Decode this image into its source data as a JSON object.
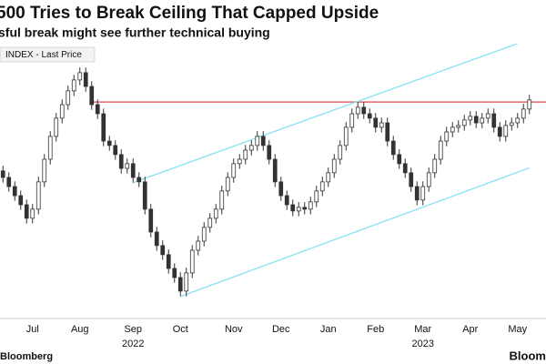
{
  "chart_data": {
    "type": "candlestick",
    "title": "500 Tries to Break Ceiling That Capped Upside",
    "subtitle": "sful break might see further technical buying",
    "series_name": "INDEX - Last Price",
    "source": "Bloomberg",
    "logo": "Bloom",
    "categories": [
      null,
      null,
      null,
      null,
      null,
      "Jul",
      null,
      null,
      null,
      null,
      null,
      null,
      null,
      "Aug",
      null,
      null,
      null,
      null,
      null,
      null,
      null,
      null,
      "Sep",
      null,
      null,
      null,
      null,
      null,
      null,
      null,
      "Oct",
      null,
      null,
      null,
      null,
      null,
      null,
      null,
      null,
      "Nov",
      null,
      null,
      null,
      null,
      null,
      null,
      null,
      "Dec",
      null,
      null,
      null,
      null,
      null,
      null,
      null,
      "Jan",
      null,
      null,
      null,
      null,
      null,
      null,
      null,
      "Feb",
      null,
      null,
      null,
      null,
      null,
      null,
      null,
      "Mar",
      null,
      null,
      null,
      null,
      null,
      null,
      null,
      "Apr",
      null,
      null,
      null,
      null,
      null,
      null,
      null,
      "May",
      null,
      null
    ],
    "category_years": [
      null,
      null,
      null,
      null,
      null,
      null,
      null,
      null,
      null,
      null,
      null,
      null,
      null,
      null,
      null,
      null,
      null,
      null,
      null,
      null,
      null,
      null,
      "2022",
      null,
      null,
      null,
      null,
      null,
      null,
      null,
      null,
      null,
      null,
      null,
      null,
      null,
      null,
      null,
      null,
      null,
      null,
      null,
      null,
      null,
      null,
      null,
      null,
      null,
      null,
      null,
      null,
      null,
      null,
      null,
      null,
      null,
      null,
      null,
      null,
      null,
      null,
      null,
      null,
      null,
      null,
      null,
      null,
      null,
      null,
      null,
      null,
      "2023",
      null,
      null,
      null,
      null,
      null,
      null,
      null,
      null,
      null,
      null,
      null,
      null,
      null,
      null,
      null,
      null,
      null,
      null
    ],
    "open": [
      3950,
      3925,
      3890,
      3855,
      3820,
      3768,
      3803,
      3908,
      3995,
      4083,
      4153,
      4205,
      4258,
      4300,
      4328,
      4275,
      4205,
      4170,
      4065,
      4048,
      4013,
      3960,
      3978,
      3925,
      3908,
      3803,
      3715,
      3663,
      3628,
      3575,
      3540,
      3488,
      3558,
      3645,
      3680,
      3733,
      3768,
      3803,
      3873,
      3925,
      3978,
      3995,
      4030,
      4048,
      4083,
      4048,
      3995,
      3908,
      3855,
      3820,
      3796,
      3810,
      3803,
      3831,
      3873,
      3908,
      3943,
      3995,
      4048,
      4118,
      4170,
      4195,
      4170,
      4153,
      4118,
      4135,
      4065,
      4013,
      3978,
      3943,
      3890,
      3838,
      3890,
      3943,
      3995,
      4065,
      4100,
      4118,
      4125,
      4146,
      4160,
      4135,
      4153,
      4170,
      4118,
      4083,
      4125,
      4135,
      4153,
      4188
    ],
    "high": [
      3970,
      3945,
      3910,
      3875,
      3840,
      3823,
      3928,
      4015,
      4103,
      4173,
      4225,
      4278,
      4320,
      4348,
      4348,
      4295,
      4225,
      4190,
      4085,
      4068,
      4033,
      3998,
      3998,
      3945,
      3928,
      3823,
      3735,
      3683,
      3648,
      3595,
      3560,
      3578,
      3665,
      3700,
      3753,
      3788,
      3823,
      3893,
      3945,
      3998,
      4015,
      4050,
      4068,
      4103,
      4103,
      4068,
      4015,
      3928,
      3875,
      3840,
      3830,
      3830,
      3851,
      3893,
      3928,
      3963,
      4015,
      4068,
      4138,
      4190,
      4215,
      4215,
      4190,
      4173,
      4155,
      4155,
      4085,
      4033,
      3998,
      3963,
      3910,
      3910,
      3963,
      4015,
      4085,
      4120,
      4138,
      4145,
      4166,
      4180,
      4180,
      4173,
      4190,
      4190,
      4138,
      4145,
      4155,
      4173,
      4208,
      4243
    ],
    "low": [
      3905,
      3870,
      3835,
      3800,
      3748,
      3748,
      3783,
      3888,
      3975,
      4063,
      4133,
      4185,
      4238,
      4280,
      4255,
      4185,
      4150,
      4045,
      4028,
      3993,
      3940,
      3940,
      3905,
      3888,
      3783,
      3695,
      3643,
      3608,
      3555,
      3520,
      3468,
      3468,
      3538,
      3625,
      3660,
      3713,
      3748,
      3783,
      3853,
      3905,
      3958,
      3975,
      4010,
      4028,
      4028,
      3975,
      3888,
      3835,
      3800,
      3776,
      3776,
      3783,
      3783,
      3811,
      3853,
      3888,
      3923,
      3975,
      4028,
      4098,
      4150,
      4150,
      4133,
      4098,
      4098,
      4045,
      3993,
      3958,
      3923,
      3870,
      3818,
      3818,
      3870,
      3923,
      3975,
      4045,
      4080,
      4098,
      4105,
      4126,
      4115,
      4115,
      4133,
      4098,
      4063,
      4063,
      4105,
      4115,
      4133,
      4168
    ],
    "close": [
      3925,
      3890,
      3855,
      3820,
      3768,
      3803,
      3908,
      3995,
      4083,
      4153,
      4205,
      4258,
      4300,
      4328,
      4275,
      4205,
      4170,
      4065,
      4048,
      4013,
      3960,
      3978,
      3925,
      3908,
      3803,
      3715,
      3663,
      3628,
      3575,
      3540,
      3488,
      3558,
      3645,
      3680,
      3733,
      3768,
      3803,
      3873,
      3925,
      3978,
      3995,
      4030,
      4048,
      4083,
      4048,
      3995,
      3908,
      3855,
      3820,
      3796,
      3810,
      3803,
      3831,
      3873,
      3908,
      3943,
      3995,
      4048,
      4118,
      4170,
      4195,
      4170,
      4153,
      4118,
      4135,
      4065,
      4013,
      3978,
      3943,
      3890,
      3838,
      3890,
      3943,
      3995,
      4065,
      4100,
      4118,
      4125,
      4146,
      4160,
      4135,
      4153,
      4170,
      4118,
      4083,
      4125,
      4135,
      4153,
      4188,
      4223
    ],
    "up_color": "#ffffff",
    "down_color": "#333333",
    "wick_color": "#333333",
    "ylim": [
      3400,
      4450
    ],
    "ceiling": {
      "value": 4215,
      "start": 15,
      "color": "#e8636b"
    },
    "channels": [
      {
        "start": [
          22,
          3905
        ],
        "end": [
          87,
          4440
        ]
      },
      {
        "start": [
          30,
          3467
        ],
        "end": [
          89,
          3962
        ]
      }
    ],
    "channel_color": "#86e3f2"
  }
}
